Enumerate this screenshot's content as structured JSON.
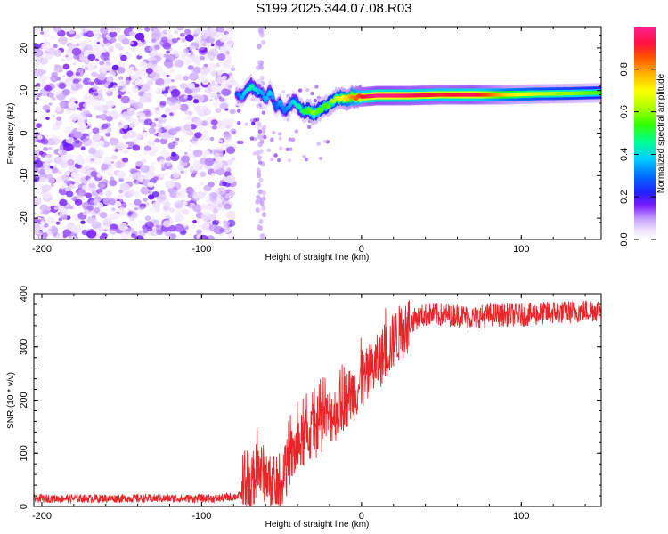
{
  "title": "S199.2025.344.07.08.R03",
  "chart_data": [
    {
      "type": "heatmap",
      "name": "spectrogram",
      "xlabel": "Height of straight line (km)",
      "ylabel": "Frequency (Hz)",
      "xlim": [
        -205,
        150
      ],
      "ylim": [
        -25,
        25
      ],
      "x_ticks": [
        -200,
        -100,
        0,
        100
      ],
      "y_ticks": [
        -20,
        -10,
        0,
        10,
        20
      ],
      "noise_region_x": [
        -205,
        -80
      ],
      "signal_ridge": {
        "x": [
          -78,
          -75,
          -72,
          -69,
          -66,
          -63,
          -60,
          -57,
          -54,
          -51,
          -48,
          -45,
          -42,
          -39,
          -36,
          -33,
          -30,
          -27,
          -24,
          -21,
          -18,
          -15,
          -12,
          -9,
          -6,
          -3,
          0,
          10,
          30,
          50,
          70,
          90,
          110,
          130,
          150
        ],
        "freq": [
          9,
          8.5,
          10,
          11,
          10,
          9.5,
          8,
          10,
          6,
          7,
          5,
          6.5,
          7.5,
          6,
          5,
          5.5,
          4.5,
          5.2,
          6,
          6.5,
          7.5,
          8,
          8.2,
          8,
          8.5,
          8.3,
          8.5,
          8.8,
          8.8,
          9.0,
          9.0,
          9.0,
          9.2,
          9.3,
          9.5
        ],
        "amplitude": [
          0.2,
          0.3,
          0.35,
          0.4,
          0.35,
          0.3,
          0.3,
          0.35,
          0.2,
          0.3,
          0.25,
          0.3,
          0.35,
          0.4,
          0.45,
          0.5,
          0.55,
          0.5,
          0.5,
          0.5,
          0.55,
          0.6,
          0.65,
          0.7,
          0.75,
          0.8,
          0.85,
          0.95,
          0.9,
          0.85,
          0.9,
          0.7,
          0.6,
          0.55,
          0.5
        ]
      },
      "colorbar": {
        "label": "Normalized spectral amplitude",
        "ticks": [
          0.0,
          0.2,
          0.4,
          0.6,
          0.8
        ],
        "tick_labels": [
          "0.0",
          "0.2",
          "0.4",
          "0.6",
          "0.8"
        ],
        "range": [
          0,
          1
        ]
      }
    },
    {
      "type": "line",
      "name": "snr",
      "xlabel": "Height of straight line (km)",
      "ylabel": "SNR (10 * v/v)",
      "xlim": [
        -205,
        150
      ],
      "ylim": [
        0,
        400
      ],
      "x_ticks": [
        -200,
        -100,
        0,
        100
      ],
      "y_ticks": [
        0,
        100,
        200,
        300,
        400
      ],
      "series": [
        {
          "name": "SNR",
          "color": "#e8262a",
          "x": [
            -205,
            -180,
            -150,
            -120,
            -90,
            -75,
            -70,
            -65,
            -60,
            -55,
            -50,
            -45,
            -40,
            -35,
            -30,
            -25,
            -20,
            -15,
            -10,
            -5,
            0,
            5,
            10,
            15,
            20,
            25,
            30,
            35,
            40,
            50,
            60,
            70,
            80,
            90,
            100,
            110,
            120,
            130,
            140,
            150
          ],
          "y": [
            15,
            15,
            15,
            15,
            15,
            20,
            40,
            70,
            60,
            30,
            40,
            90,
            110,
            130,
            140,
            155,
            170,
            180,
            200,
            215,
            230,
            250,
            270,
            290,
            310,
            330,
            345,
            355,
            360,
            360,
            360,
            355,
            360,
            360,
            360,
            362,
            365,
            365,
            368,
            370
          ]
        }
      ]
    }
  ],
  "colors": {
    "axis": "#000000",
    "snr_line": "#e8262a",
    "noise": "#8a3cf0"
  }
}
